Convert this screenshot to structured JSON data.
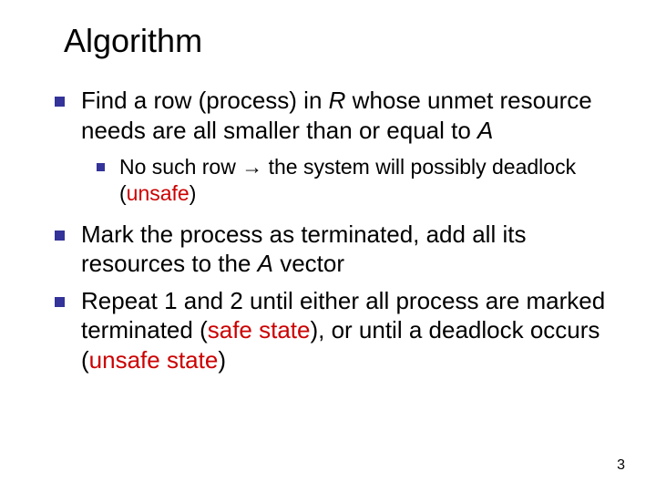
{
  "title": "Algorithm",
  "colors": {
    "bullet": "#333399",
    "text": "#000000",
    "accent": "#cc0000",
    "background": "#ffffff"
  },
  "typography": {
    "title_fontsize": 36,
    "l1_fontsize": 26,
    "l2_fontsize": 23,
    "font_family": "Verdana"
  },
  "bullets": [
    {
      "level": 1,
      "pre": "Find a row (process) in ",
      "ital1": "R",
      "mid": " whose unmet resource needs are all smaller than or equal to ",
      "ital2": "A",
      "post": ""
    },
    {
      "level": 2,
      "pre": "No such row ",
      "arrow": "→",
      "mid": " the system will possibly deadlock (",
      "red": "unsafe",
      "post": ")"
    },
    {
      "level": 1,
      "pre": "Mark the process as terminated, add all its resources to the ",
      "ital1": "A",
      "mid": " vector",
      "ital2": "",
      "post": ""
    },
    {
      "level": 1,
      "pre": "Repeat 1 and 2 until either all process are marked terminated (",
      "red1": "safe state",
      "mid": "), or until a deadlock occurs (",
      "red2": "unsafe state",
      "post": ")"
    }
  ],
  "page_number": "3"
}
